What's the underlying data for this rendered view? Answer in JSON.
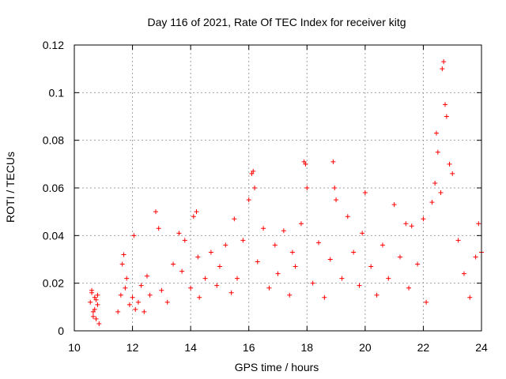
{
  "chart_data": {
    "type": "scatter",
    "title": "Day 116 of 2021, Rate Of TEC Index for receiver kitg",
    "xlabel": "GPS time / hours",
    "ylabel": "ROTI / TECUs",
    "xlim": [
      10,
      24
    ],
    "ylim": [
      0,
      0.12
    ],
    "x_ticks": [
      "10",
      "12",
      "14",
      "16",
      "18",
      "20",
      "22",
      "24"
    ],
    "y_ticks": [
      "0",
      "0.02",
      "0.04",
      "0.06",
      "0.08",
      "0.1",
      "0.12"
    ],
    "grid": true,
    "marker": "+",
    "series": [
      {
        "name": "ROTI",
        "color": "#ff0000",
        "x": [
          10.55,
          10.6,
          10.65,
          10.7,
          10.75,
          10.8,
          10.85,
          10.6,
          10.7,
          10.8,
          10.65,
          10.75,
          11.5,
          11.6,
          11.7,
          11.8,
          11.9,
          12.0,
          12.1,
          11.65,
          11.75,
          12.05,
          12.2,
          12.3,
          12.4,
          12.5,
          12.6,
          12.8,
          12.9,
          13.0,
          13.2,
          13.4,
          13.6,
          13.7,
          13.8,
          14.0,
          14.1,
          14.2,
          14.25,
          14.3,
          14.5,
          14.7,
          14.9,
          15.0,
          15.2,
          15.4,
          15.5,
          15.6,
          15.8,
          16.0,
          16.1,
          16.15,
          16.2,
          16.3,
          16.5,
          16.7,
          16.9,
          17.0,
          17.2,
          17.4,
          17.5,
          17.6,
          17.8,
          17.9,
          17.95,
          18.0,
          18.2,
          18.4,
          18.6,
          18.8,
          18.9,
          18.95,
          19.0,
          19.2,
          19.4,
          19.6,
          19.8,
          19.9,
          20.0,
          20.2,
          20.4,
          20.6,
          20.8,
          21.0,
          21.2,
          21.4,
          21.5,
          21.6,
          21.8,
          22.0,
          22.1,
          22.3,
          22.4,
          22.45,
          22.5,
          22.6,
          22.65,
          22.7,
          22.75,
          22.8,
          22.9,
          23.0,
          23.2,
          23.4,
          23.6,
          23.8,
          23.9,
          24.0
        ],
        "y": [
          0.012,
          0.016,
          0.008,
          0.014,
          0.005,
          0.011,
          0.003,
          0.017,
          0.009,
          0.015,
          0.006,
          0.013,
          0.008,
          0.015,
          0.032,
          0.022,
          0.011,
          0.014,
          0.009,
          0.028,
          0.018,
          0.04,
          0.012,
          0.019,
          0.008,
          0.023,
          0.015,
          0.05,
          0.043,
          0.017,
          0.012,
          0.028,
          0.041,
          0.025,
          0.038,
          0.018,
          0.048,
          0.05,
          0.031,
          0.014,
          0.022,
          0.033,
          0.019,
          0.027,
          0.036,
          0.016,
          0.047,
          0.022,
          0.038,
          0.055,
          0.066,
          0.067,
          0.06,
          0.029,
          0.043,
          0.018,
          0.036,
          0.024,
          0.042,
          0.015,
          0.033,
          0.027,
          0.045,
          0.071,
          0.07,
          0.06,
          0.02,
          0.037,
          0.014,
          0.03,
          0.071,
          0.06,
          0.055,
          0.022,
          0.048,
          0.033,
          0.019,
          0.041,
          0.058,
          0.027,
          0.015,
          0.036,
          0.022,
          0.053,
          0.031,
          0.045,
          0.018,
          0.044,
          0.028,
          0.047,
          0.012,
          0.054,
          0.062,
          0.083,
          0.075,
          0.058,
          0.11,
          0.113,
          0.095,
          0.09,
          0.07,
          0.066,
          0.038,
          0.024,
          0.014,
          0.031,
          0.045,
          0.033
        ]
      }
    ]
  }
}
